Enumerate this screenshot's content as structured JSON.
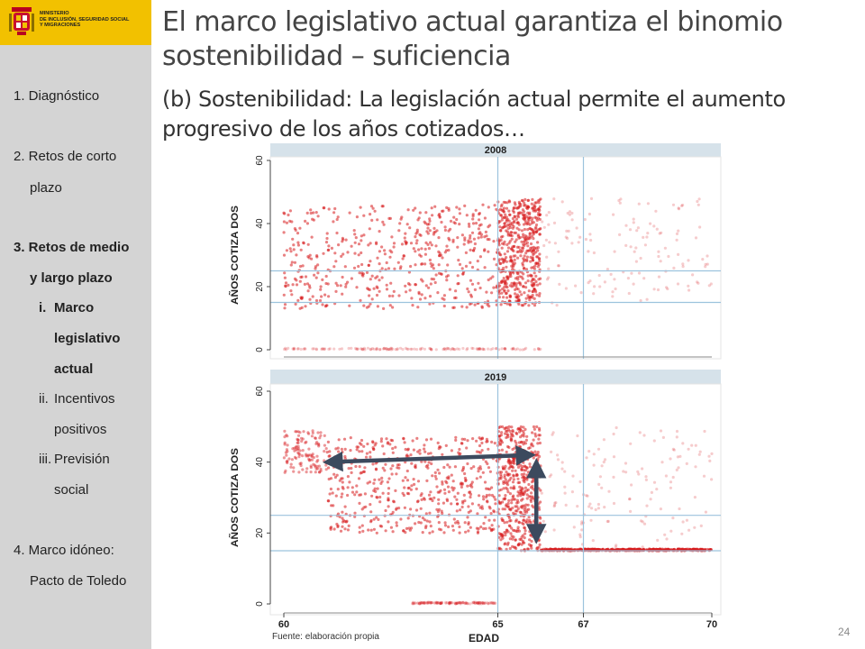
{
  "logo": {
    "ministry_lines": [
      "MINISTERIO",
      "DE INCLUSIÓN, SEGURIDAD SOCIAL",
      "Y MIGRACIONES"
    ]
  },
  "sidebar": {
    "items": [
      {
        "label": "1. Diagnóstico",
        "bold": false
      },
      {
        "label": "2. Retos de corto",
        "bold": false
      },
      {
        "label": "plazo",
        "bold": false
      },
      {
        "label": "3. Retos de medio",
        "bold": true
      },
      {
        "label": "y largo plazo",
        "bold": true
      },
      {
        "label": "i.",
        "bold": true
      },
      {
        "label": "Marco",
        "bold": true
      },
      {
        "label": "legislativo",
        "bold": true
      },
      {
        "label": "actual",
        "bold": true
      },
      {
        "label": "ii.",
        "bold": false
      },
      {
        "label": "Incentivos",
        "bold": false
      },
      {
        "label": "positivos",
        "bold": false
      },
      {
        "label": "iii.",
        "bold": false
      },
      {
        "label": "Previsión",
        "bold": false
      },
      {
        "label": "social",
        "bold": false
      },
      {
        "label": "4. Marco idóneo:",
        "bold": false
      },
      {
        "label": "Pacto de Toledo",
        "bold": false
      }
    ]
  },
  "slide": {
    "title": "El marco legislativo actual garantiza el binomio sostenibilidad – suficiencia",
    "subtitle": "(b) Sostenibilidad: La legislación actual permite el aumento progresivo de los años cotizados…",
    "source": "Fuente: elaboración propia",
    "page_number": "24"
  },
  "colors": {
    "sidebar_bg": "#d4d4d4",
    "logo_bg": "#f2c100",
    "dot_color": "#d7191c",
    "panel_header": "#d6e2ea",
    "reference_line": "#9cc3dd",
    "arrow": "#3c4a5e"
  },
  "chart_data": {
    "type": "scatter",
    "description_level": "density scatter of contribution years by age at retirement",
    "xlabel": "EDAD",
    "ylabel": "AÑOS COTIZA DOS",
    "x_ticks": [
      60,
      65,
      67,
      70
    ],
    "y_ticks": [
      0,
      20,
      40,
      60
    ],
    "xlim": [
      60,
      70
    ],
    "ylim": [
      0,
      60
    ],
    "vertical_reference_lines": [
      65,
      67
    ],
    "horizontal_reference_lines": [
      15,
      25
    ],
    "panels": [
      {
        "name": "2008",
        "clusters": [
          {
            "x": [
              60,
              65
            ],
            "y": [
              13,
              46
            ],
            "density": "high"
          },
          {
            "x": [
              65,
              66
            ],
            "y": [
              14,
              48
            ],
            "density": "high"
          },
          {
            "x": [
              66,
              70
            ],
            "y": [
              14,
              48
            ],
            "density": "low"
          },
          {
            "x": [
              60,
              66
            ],
            "y": [
              0,
              0.5
            ],
            "density": "low"
          }
        ]
      },
      {
        "name": "2019",
        "clusters": [
          {
            "x": [
              61,
              65
            ],
            "y": [
              20,
              47
            ],
            "density": "high"
          },
          {
            "x": [
              65,
              66
            ],
            "y": [
              15,
              50
            ],
            "density": "high"
          },
          {
            "x": [
              66,
              70
            ],
            "y": [
              15,
              15.5
            ],
            "density": "high"
          },
          {
            "x": [
              66,
              70
            ],
            "y": [
              16,
              50
            ],
            "density": "low"
          },
          {
            "x": [
              60,
              61
            ],
            "y": [
              37,
              49
            ],
            "density": "medium"
          },
          {
            "x": [
              63,
              65
            ],
            "y": [
              0,
              0.5
            ],
            "density": "low"
          }
        ],
        "annotations": [
          {
            "type": "double-arrow",
            "from": [
              61,
              40
            ],
            "to": [
              65.8,
              42
            ]
          },
          {
            "type": "double-arrow",
            "from": [
              65.9,
              40
            ],
            "to": [
              65.9,
              18
            ]
          }
        ]
      }
    ]
  }
}
